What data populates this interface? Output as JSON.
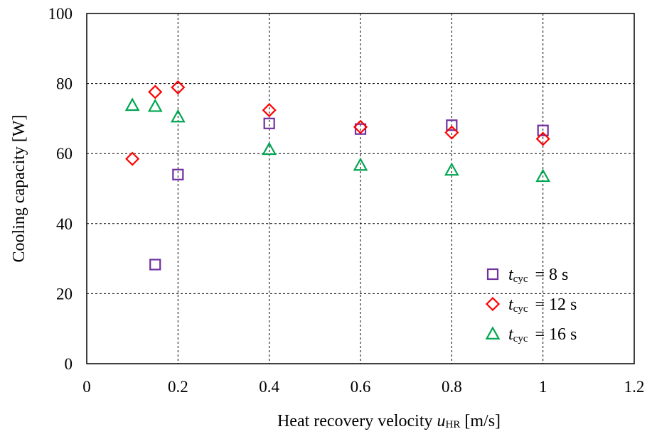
{
  "chart_data": {
    "type": "scatter",
    "title": "",
    "xlabel": {
      "prefix": "Heat recovery velocity ",
      "var": "u",
      "sub": "HR",
      "unit": " [m/s]"
    },
    "ylabel": "Cooling capacity [W]",
    "xlim": [
      0,
      1.2
    ],
    "ylim": [
      0,
      100
    ],
    "xticks": [
      0,
      0.2,
      0.4,
      0.6,
      0.8,
      1.0,
      1.2
    ],
    "xtick_labels": [
      "0",
      "0.2",
      "0.4",
      "0.6",
      "0.8",
      "1",
      "1.2"
    ],
    "yticks": [
      0,
      20,
      40,
      60,
      80,
      100
    ],
    "ytick_labels": [
      "0",
      "20",
      "40",
      "60",
      "80",
      "100"
    ],
    "grid": true,
    "legend_position": "bottom-right",
    "series": [
      {
        "legend_var": "t",
        "legend_sub": "cyc",
        "legend_value": "= 8 s",
        "marker": "square",
        "color": "#7030A0",
        "points": [
          [
            0.15,
            28.3
          ],
          [
            0.2,
            54.0
          ],
          [
            0.4,
            68.6
          ],
          [
            0.6,
            67.0
          ],
          [
            0.8,
            68.1
          ],
          [
            1.0,
            66.6
          ]
        ]
      },
      {
        "legend_var": "t",
        "legend_sub": "cyc",
        "legend_value": "= 12 s",
        "marker": "diamond",
        "color": "#FF0000",
        "points": [
          [
            0.1,
            58.5
          ],
          [
            0.15,
            77.6
          ],
          [
            0.2,
            78.9
          ],
          [
            0.4,
            72.4
          ],
          [
            0.6,
            67.6
          ],
          [
            0.8,
            66.0
          ],
          [
            1.0,
            64.2
          ]
        ]
      },
      {
        "legend_var": "t",
        "legend_sub": "cyc",
        "legend_value": "= 16 s",
        "marker": "triangle",
        "color": "#00A651",
        "points": [
          [
            0.1,
            73.8
          ],
          [
            0.15,
            73.5
          ],
          [
            0.2,
            70.5
          ],
          [
            0.4,
            61.2
          ],
          [
            0.6,
            56.7
          ],
          [
            0.8,
            55.3
          ],
          [
            1.0,
            53.5
          ]
        ]
      }
    ]
  }
}
